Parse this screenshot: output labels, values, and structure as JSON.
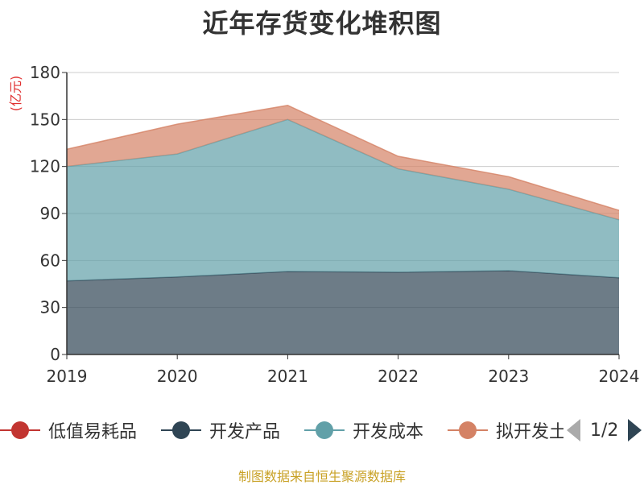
{
  "chart_data": {
    "type": "area",
    "stacked": true,
    "title": "近年存货变化堆积图",
    "ylabel": "(亿元)",
    "xlabel": "",
    "categories": [
      "2019",
      "2020",
      "2021",
      "2022",
      "2023",
      "2024"
    ],
    "ylim": [
      0,
      180
    ],
    "yticks": [
      0,
      30,
      60,
      90,
      120,
      150,
      180
    ],
    "grid": true,
    "series": [
      {
        "name": "低值易耗品",
        "color": "#c23531",
        "values": [
          0,
          0,
          0,
          0,
          0,
          0
        ]
      },
      {
        "name": "开发产品",
        "color": "#2f4554",
        "values": [
          47,
          49.5,
          53,
          52.5,
          53.5,
          49
        ]
      },
      {
        "name": "开发成本",
        "color": "#61a0a8",
        "values": [
          73,
          78.5,
          97,
          66,
          52,
          37
        ]
      },
      {
        "name": "拟开发土地",
        "color": "#d48265",
        "values": [
          11,
          19,
          9,
          8,
          8,
          6
        ]
      }
    ],
    "legend": {
      "position": "bottom",
      "page": "1/2"
    }
  },
  "source_note": "制图数据来自恒生聚源数据库"
}
